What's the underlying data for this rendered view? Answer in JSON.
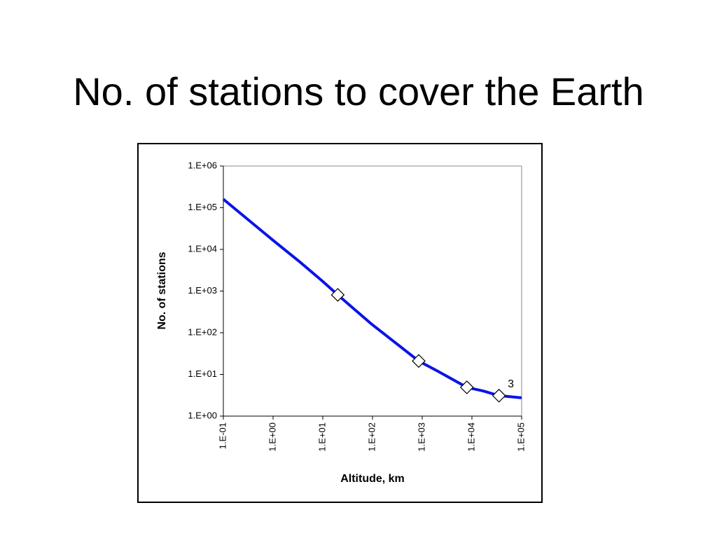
{
  "chart_data": {
    "type": "line",
    "title": "No. of stations to cover the Earth",
    "xlabel": "Altitude, km",
    "ylabel": "No. of stations",
    "xscale": "log",
    "yscale": "log",
    "x": [
      0.1,
      1,
      3.6,
      10,
      20,
      93,
      850,
      2040,
      7900,
      17000,
      35000,
      100000
    ],
    "values": [
      160000,
      16500,
      4800,
      1700,
      810,
      166,
      21,
      12,
      4.9,
      4,
      3.1,
      2.75
    ],
    "color": "#0a14e6",
    "markers": {
      "x": [
        20,
        850,
        7900,
        35000
      ],
      "values": [
        810,
        21,
        4.9,
        3.1
      ],
      "value_labels": [
        null,
        null,
        null,
        "3"
      ]
    },
    "xlim": [
      0.1,
      100000
    ],
    "ylim": [
      1,
      1000000
    ],
    "xticks": [
      {
        "value": 0.1,
        "label": "1.E-01"
      },
      {
        "value": 1,
        "label": "1.E+00"
      },
      {
        "value": 10,
        "label": "1.E+01"
      },
      {
        "value": 100,
        "label": "1.E+02"
      },
      {
        "value": 1000,
        "label": "1.E+03"
      },
      {
        "value": 10000,
        "label": "1.E+04"
      },
      {
        "value": 100000,
        "label": "1.E+05"
      }
    ],
    "yticks": [
      {
        "value": 1,
        "label": "1.E+00"
      },
      {
        "value": 10,
        "label": "1.E+01"
      },
      {
        "value": 100,
        "label": "1.E+02"
      },
      {
        "value": 1000,
        "label": "1.E+03"
      },
      {
        "value": 10000,
        "label": "1.E+04"
      },
      {
        "value": 100000,
        "label": "1.E+05"
      },
      {
        "value": 1000000,
        "label": "1.E+06"
      }
    ]
  }
}
